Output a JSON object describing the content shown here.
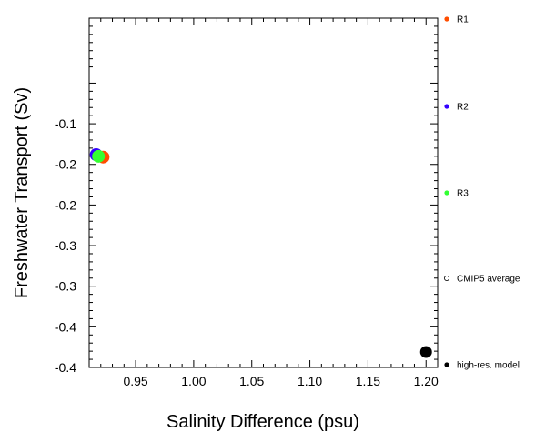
{
  "chart_data": {
    "type": "scatter",
    "title": "",
    "xlabel": "Salinity Difference (psu)",
    "ylabel": "Freshwater Transport (Sv)",
    "xlim": [
      0.91,
      1.21
    ],
    "ylim": [
      -0.4,
      0.03
    ],
    "x_ticks": [
      0.95,
      1.0,
      1.05,
      1.1,
      1.15,
      1.2
    ],
    "x_tick_labels": [
      "0.95",
      "1.00",
      "1.05",
      "1.10",
      "1.15",
      "1.20"
    ],
    "y_ticks": [
      -0.05,
      -0.1,
      -0.15,
      -0.2,
      -0.25,
      -0.3,
      -0.35,
      -0.4
    ],
    "y_tick_labels": [
      "",
      "-0.1",
      "-0.2",
      "-0.2",
      "-0.3",
      "-0.3",
      "-0.4",
      "-0.4"
    ],
    "grid": false,
    "legend_position": "outside-right",
    "series": [
      {
        "name": "R1",
        "color": "#ff4d00",
        "marker": "filled-circle",
        "points": [
          [
            0.922,
            -0.141
          ]
        ]
      },
      {
        "name": "R2",
        "color": "#3300ff",
        "marker": "filled-circle",
        "points": [
          [
            0.916,
            -0.138
          ]
        ]
      },
      {
        "name": "R3",
        "color": "#33ff33",
        "marker": "filled-circle",
        "points": [
          [
            0.918,
            -0.14
          ]
        ]
      },
      {
        "name": "CMIP5 average",
        "color": "#000000",
        "marker": "open-circle",
        "points": []
      },
      {
        "name": "high-res. model",
        "color": "#000000",
        "marker": "filled-circle",
        "points": [
          [
            1.2,
            -0.381
          ]
        ]
      }
    ]
  }
}
